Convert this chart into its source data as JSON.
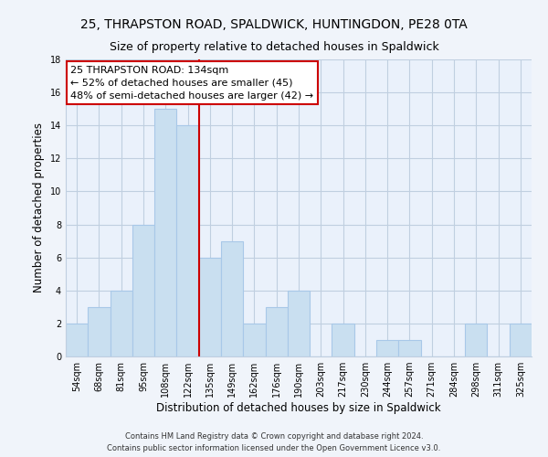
{
  "title": "25, THRAPSTON ROAD, SPALDWICK, HUNTINGDON, PE28 0TA",
  "subtitle": "Size of property relative to detached houses in Spaldwick",
  "xlabel": "Distribution of detached houses by size in Spaldwick",
  "ylabel": "Number of detached properties",
  "bar_labels": [
    "54sqm",
    "68sqm",
    "81sqm",
    "95sqm",
    "108sqm",
    "122sqm",
    "135sqm",
    "149sqm",
    "162sqm",
    "176sqm",
    "190sqm",
    "203sqm",
    "217sqm",
    "230sqm",
    "244sqm",
    "257sqm",
    "271sqm",
    "284sqm",
    "298sqm",
    "311sqm",
    "325sqm"
  ],
  "bar_values": [
    2,
    3,
    4,
    8,
    15,
    14,
    6,
    7,
    2,
    3,
    4,
    0,
    2,
    0,
    1,
    1,
    0,
    0,
    2,
    0,
    2
  ],
  "bar_color": "#c9dff0",
  "bar_edge_color": "#a8c8e8",
  "vline_color": "#cc0000",
  "ylim": [
    0,
    18
  ],
  "yticks": [
    0,
    2,
    4,
    6,
    8,
    10,
    12,
    14,
    16,
    18
  ],
  "annotation_title": "25 THRAPSTON ROAD: 134sqm",
  "annotation_line1": "← 52% of detached houses are smaller (45)",
  "annotation_line2": "48% of semi-detached houses are larger (42) →",
  "box_color": "#ffffff",
  "box_edge_color": "#cc0000",
  "footer_line1": "Contains HM Land Registry data © Crown copyright and database right 2024.",
  "footer_line2": "Contains public sector information licensed under the Open Government Licence v3.0.",
  "title_fontsize": 10,
  "subtitle_fontsize": 9,
  "axis_label_fontsize": 8.5,
  "tick_fontsize": 7,
  "annotation_fontsize": 8,
  "footer_fontsize": 6,
  "background_color": "#f0f4fa",
  "plot_bg_color": "#eaf1fb",
  "grid_color": "#c0cfe0"
}
